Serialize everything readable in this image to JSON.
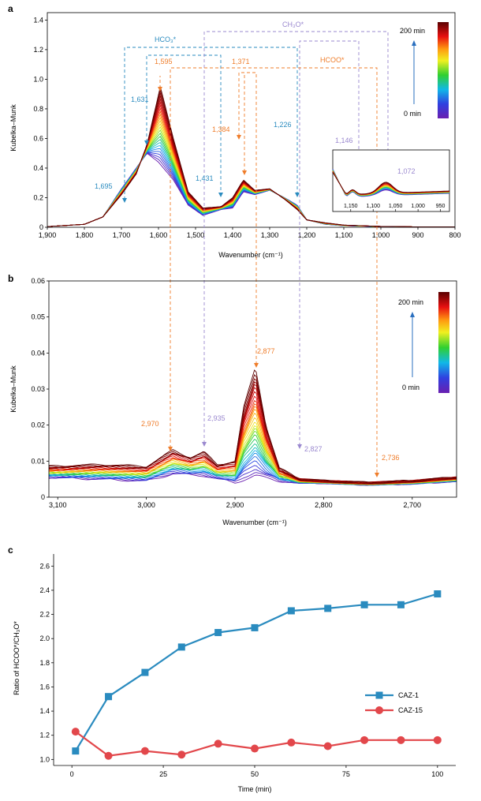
{
  "panels": {
    "a": {
      "label": "a",
      "ylabel": "Kubelka–Munk",
      "xlabel": "Wavenumber (cm⁻¹)",
      "xticks": [
        "1,900",
        "1,800",
        "1,700",
        "1,600",
        "1,500",
        "1,400",
        "1,300",
        "1,200",
        "1,100",
        "1,000",
        "900",
        "800"
      ],
      "yticks": [
        "0",
        "0.2",
        "0.4",
        "0.6",
        "0.8",
        "1.0",
        "1.2",
        "1.4"
      ],
      "groups": {
        "hco3": "HCO₃*",
        "ch3o": "CH₃O*",
        "hcoo": "HCOO*"
      },
      "peaks": {
        "p1695": "1,695",
        "p1631": "1,631",
        "p1595": "1,595",
        "p1431": "1,431",
        "p1384": "1,384",
        "p1371": "1,371",
        "p1226": "1,226",
        "p1146": "1,146",
        "p1072": "1,072"
      },
      "colorbar": {
        "max_label": "200 min",
        "min_label": "0 min"
      },
      "inset": {
        "xticks": [
          "1,150",
          "1,100",
          "1,050",
          "1,000",
          "950"
        ]
      }
    },
    "b": {
      "label": "b",
      "ylabel": "Kubelka–Munk",
      "xlabel": "Wavenumber (cm⁻¹)",
      "xticks": [
        "3,100",
        "3,000",
        "2,900",
        "2,800",
        "2,700"
      ],
      "yticks": [
        "0",
        "0.01",
        "0.02",
        "0.03",
        "0.04",
        "0.05",
        "0.06"
      ],
      "peaks": {
        "p2970": "2,970",
        "p2935": "2,935",
        "p2877": "2,877",
        "p2827": "2,827",
        "p2736": "2,736"
      },
      "colorbar": {
        "max_label": "200 min",
        "min_label": "0 min"
      }
    },
    "c": {
      "label": "c",
      "ylabel": "Ratio of HCOO*/CH₃O*",
      "xlabel": "Time (min)",
      "xticks": [
        "0",
        "25",
        "50",
        "75",
        "100"
      ],
      "yticks": [
        "1.0",
        "1.2",
        "1.4",
        "1.6",
        "1.8",
        "2.0",
        "2.2",
        "2.4",
        "2.6"
      ]
    }
  },
  "colors": {
    "hco3": "#2a8bbf",
    "ch3o": "#9a88cf",
    "hcoo": "#ef7d2b",
    "caz1": "#2a8bbf",
    "caz15": "#e2474b"
  },
  "chart_data": [
    {
      "type": "line",
      "panel": "a",
      "series_description": "time-resolved DRIFTS spectra colored 0 min (violet) to 200 min (dark red)",
      "x_range": [
        1900,
        800
      ],
      "ylim": [
        0,
        1.45
      ],
      "peak_positions": [
        1695,
        1631,
        1595,
        1431,
        1384,
        1371,
        1226,
        1146,
        1072
      ],
      "initial_spectrum": {
        "x": [
          1900,
          1800,
          1750,
          1700,
          1660,
          1631,
          1600,
          1560,
          1520,
          1480,
          1431,
          1400,
          1371,
          1340,
          1300,
          1260,
          1226,
          1200,
          1150,
          1100,
          1000,
          900,
          800
        ],
        "y": [
          0.005,
          0.02,
          0.07,
          0.26,
          0.4,
          0.5,
          0.44,
          0.32,
          0.15,
          0.08,
          0.12,
          0.13,
          0.24,
          0.22,
          0.25,
          0.2,
          0.15,
          0.05,
          0.02,
          0.01,
          0.005,
          0.003,
          0.003
        ]
      },
      "final_spectrum": {
        "x": [
          1900,
          1800,
          1750,
          1700,
          1660,
          1631,
          1595,
          1560,
          1520,
          1480,
          1431,
          1400,
          1371,
          1340,
          1300,
          1260,
          1226,
          1200,
          1150,
          1100,
          1000,
          900,
          800
        ],
        "y": [
          0.005,
          0.02,
          0.07,
          0.22,
          0.36,
          0.56,
          0.95,
          0.6,
          0.24,
          0.13,
          0.14,
          0.2,
          0.32,
          0.25,
          0.26,
          0.19,
          0.12,
          0.05,
          0.03,
          0.015,
          0.006,
          0.003,
          0.003
        ]
      }
    },
    {
      "type": "line",
      "panel": "b",
      "series_description": "time-resolved DRIFTS spectra colored 0 min (violet) to 200 min (dark red)",
      "x_range": [
        3110,
        2650
      ],
      "ylim": [
        0,
        0.06
      ],
      "peak_positions": [
        2970,
        2935,
        2877,
        2827,
        2736
      ],
      "initial_spectrum": {
        "x": [
          3110,
          3050,
          3000,
          2970,
          2935,
          2900,
          2877,
          2850,
          2827,
          2800,
          2750,
          2700,
          2650
        ],
        "y": [
          0.0055,
          0.005,
          0.0045,
          0.0065,
          0.006,
          0.004,
          0.006,
          0.0045,
          0.004,
          0.004,
          0.0035,
          0.0038,
          0.0045
        ]
      },
      "final_spectrum": {
        "x": [
          3110,
          3050,
          3000,
          2970,
          2950,
          2935,
          2920,
          2900,
          2890,
          2877,
          2865,
          2850,
          2827,
          2800,
          2750,
          2700,
          2650
        ],
        "y": [
          0.0085,
          0.009,
          0.0085,
          0.013,
          0.011,
          0.0125,
          0.009,
          0.01,
          0.025,
          0.036,
          0.02,
          0.008,
          0.005,
          0.0045,
          0.004,
          0.0045,
          0.0055
        ]
      }
    },
    {
      "type": "line",
      "panel": "c",
      "xlabel": "Time (min)",
      "ylabel": "Ratio of HCOO*/CH₃O*",
      "ylim": [
        0.95,
        2.7
      ],
      "xlim": [
        -5,
        105
      ],
      "legend": "right-middle",
      "series": [
        {
          "name": "CAZ-1",
          "color": "#2a8bbf",
          "marker": "square",
          "x": [
            1,
            10,
            20,
            30,
            40,
            50,
            60,
            70,
            80,
            90,
            100
          ],
          "y": [
            1.07,
            1.52,
            1.72,
            1.93,
            2.05,
            2.09,
            2.23,
            2.25,
            2.28,
            2.28,
            2.37
          ]
        },
        {
          "name": "CAZ-15",
          "color": "#e2474b",
          "marker": "circle",
          "x": [
            1,
            10,
            20,
            30,
            40,
            50,
            60,
            70,
            80,
            90,
            100
          ],
          "y": [
            1.23,
            1.03,
            1.07,
            1.04,
            1.13,
            1.09,
            1.14,
            1.11,
            1.16,
            1.16,
            1.16
          ]
        }
      ]
    }
  ]
}
